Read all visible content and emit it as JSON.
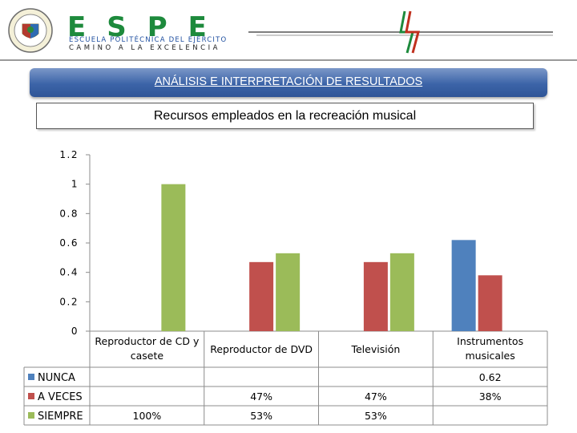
{
  "header": {
    "brand": "ESPE",
    "line1": "ESCUELA POLITÉCNICA DEL EJÉRCITO",
    "line2": "CAMINO A LA EXCELENCIA"
  },
  "slide": {
    "title": "ANÁLISIS E INTERPRETACIÓN  DE RESULTADOS"
  },
  "colors": {
    "title_bar": "#2f5597",
    "nunca": "#4f81bd",
    "a_veces": "#c0504d",
    "siempre": "#9bbb59",
    "brand_green": "#1d8a3c"
  },
  "chart_data": {
    "type": "bar",
    "title": "Recursos empleados en la recreación musical",
    "categories": [
      [
        "Reproductor de CD y",
        "casete"
      ],
      [
        "Reproductor de DVD"
      ],
      [
        "Televisión"
      ],
      [
        "Instrumentos",
        "musicales"
      ]
    ],
    "series": [
      {
        "name": "NUNCA",
        "color": "#4f81bd",
        "values": [
          null,
          null,
          null,
          0.62
        ],
        "table": [
          "",
          "",
          "",
          "0.62"
        ]
      },
      {
        "name": "A VECES",
        "color": "#c0504d",
        "values": [
          null,
          0.47,
          0.47,
          0.38
        ],
        "table": [
          "",
          "47%",
          "47%",
          "38%"
        ]
      },
      {
        "name": "SIEMPRE",
        "color": "#9bbb59",
        "values": [
          1.0,
          0.53,
          0.53,
          null
        ],
        "table": [
          "100%",
          "53%",
          "53%",
          ""
        ]
      }
    ],
    "ylim": [
      0,
      1.2
    ],
    "yticks": [
      "0",
      "0.2",
      "0.4",
      "0.6",
      "0.8",
      "1",
      "1.2"
    ],
    "legend": "data-table"
  }
}
